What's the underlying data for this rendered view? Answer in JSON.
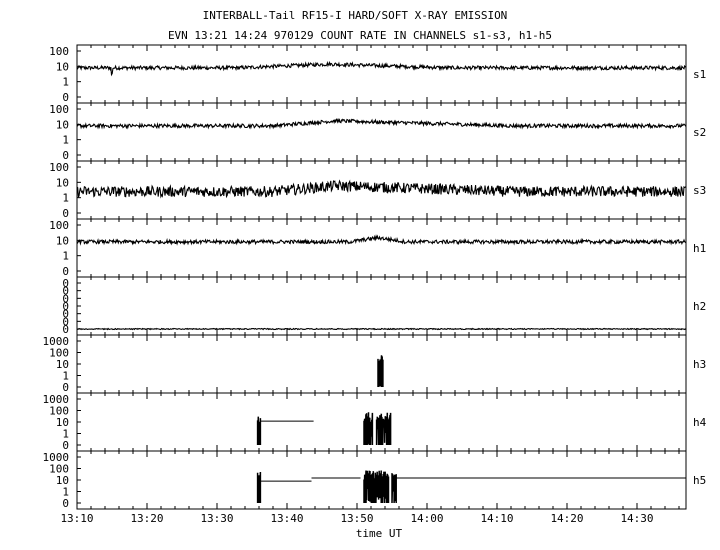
{
  "header": {
    "title": "INTERBALL-Tail RF15-I HARD/SOFT X-RAY EMISSION",
    "subtitle": "EVN 13:21 14:24 970129  COUNT RATE IN CHANNELS s1-s3, h1-h5"
  },
  "chart_data": {
    "type": "line",
    "xlabel": "time UT",
    "x_ticks": [
      "13:10",
      "13:20",
      "13:30",
      "13:40",
      "13:50",
      "14:00",
      "14:10",
      "14:20",
      "14:30"
    ],
    "xlim_minutes_after_13_10": [
      0,
      87
    ],
    "yscale": "log",
    "grid": false,
    "legend": "none",
    "colors": {
      "line": "#000000",
      "background": "#ffffff"
    },
    "panels": [
      {
        "name": "s1",
        "y_ticks": [
          "100",
          "10",
          "1",
          "0"
        ],
        "baseline_count_rate": 8,
        "features": [
          {
            "start": "13:33",
            "end": "14:03",
            "peak": "13:46",
            "peak_count_rate": 14
          }
        ],
        "dips": [
          {
            "time": "13:15",
            "count_rate": 3
          }
        ]
      },
      {
        "name": "s2",
        "y_ticks": [
          "100",
          "10",
          "1",
          "0"
        ],
        "baseline_count_rate": 8,
        "features": [
          {
            "start": "13:38",
            "end": "14:12",
            "peak": "13:47",
            "peak_count_rate": 17
          }
        ]
      },
      {
        "name": "s3",
        "y_ticks": [
          "100",
          "10",
          "1",
          "0"
        ],
        "baseline_count_rate": 2.5,
        "features": [
          {
            "start": "13:38",
            "end": "14:12",
            "peak": "13:47",
            "peak_count_rate": 6
          }
        ]
      },
      {
        "name": "h1",
        "y_ticks": [
          "100",
          "10",
          "1",
          "0"
        ],
        "baseline_count_rate": 8,
        "features": [
          {
            "start": "13:49",
            "end": "13:57",
            "peak": "13:53",
            "peak_count_rate": 15
          }
        ]
      },
      {
        "name": "h2",
        "y_ticks": [
          "0",
          "0",
          "0",
          "0",
          "0",
          "0",
          "0"
        ],
        "baseline_count_rate": 0,
        "features": []
      },
      {
        "name": "h3",
        "y_ticks": [
          "1000",
          "100",
          "10",
          "1",
          "0"
        ],
        "segments": [
          {
            "start": "13:53",
            "end": "13:53.7",
            "kind": "spikes",
            "count_rate": 60
          }
        ]
      },
      {
        "name": "h4",
        "y_ticks": [
          "1000",
          "100",
          "10",
          "1",
          "0"
        ],
        "segments": [
          {
            "start": "13:35.8",
            "end": "13:36.2",
            "kind": "spikes",
            "count_rate": 50
          },
          {
            "start": "13:36.2",
            "end": "13:43.8",
            "kind": "level",
            "count_rate": 12
          },
          {
            "start": "13:51",
            "end": "13:52.2",
            "kind": "spikes",
            "count_rate": 70
          },
          {
            "start": "13:52.8",
            "end": "13:54.8",
            "kind": "spikes",
            "count_rate": 70
          }
        ]
      },
      {
        "name": "h5",
        "y_ticks": [
          "1000",
          "100",
          "10",
          "1",
          "0"
        ],
        "segments": [
          {
            "start": "13:35.8",
            "end": "13:36.2",
            "kind": "spikes",
            "count_rate": 50
          },
          {
            "start": "13:36.2",
            "end": "13:43.5",
            "kind": "level",
            "count_rate": 8
          },
          {
            "start": "13:43.5",
            "end": "13:50.5",
            "kind": "level",
            "count_rate": 15
          },
          {
            "start": "13:51",
            "end": "13:54.5",
            "kind": "spikes",
            "count_rate": 70
          },
          {
            "start": "13:55",
            "end": "13:55.6",
            "kind": "spikes",
            "count_rate": 40
          },
          {
            "start": "13:55.6",
            "end": "14:37",
            "kind": "level",
            "count_rate": 15
          }
        ]
      }
    ]
  }
}
